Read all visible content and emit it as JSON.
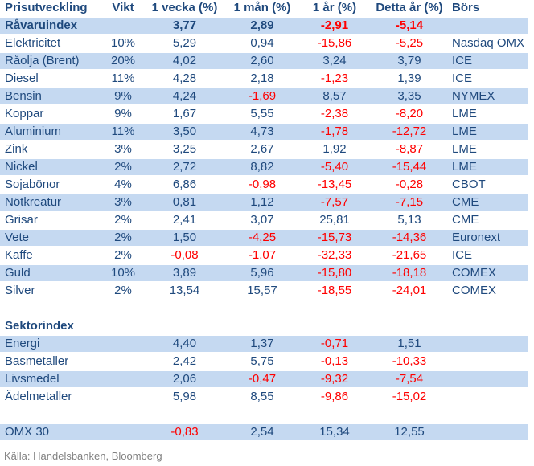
{
  "table": {
    "columns": [
      "Prisutveckling",
      "Vikt",
      "1 vecka (%)",
      "1 mån (%)",
      "1 år (%)",
      "Detta år (%)",
      "Börs"
    ],
    "rows": [
      {
        "cells": [
          "Råvaruindex",
          "",
          "3,77",
          "2,89",
          "-2,91",
          "-5,14",
          ""
        ],
        "bold": true,
        "shaded": true
      },
      {
        "cells": [
          "Elektricitet",
          "10%",
          "5,29",
          "0,94",
          "-15,86",
          "-5,25",
          "Nasdaq OMX"
        ],
        "shaded": false
      },
      {
        "cells": [
          "Råolja (Brent)",
          "20%",
          "4,02",
          "2,60",
          "3,24",
          "3,79",
          "ICE"
        ],
        "shaded": true
      },
      {
        "cells": [
          "Diesel",
          "11%",
          "4,28",
          "2,18",
          "-1,23",
          "1,39",
          "ICE"
        ],
        "shaded": false
      },
      {
        "cells": [
          "Bensin",
          "9%",
          "4,24",
          "-1,69",
          "8,57",
          "3,35",
          "NYMEX"
        ],
        "shaded": true
      },
      {
        "cells": [
          "Koppar",
          "9%",
          "1,67",
          "5,55",
          "-2,38",
          "-8,20",
          "LME"
        ],
        "shaded": false
      },
      {
        "cells": [
          "Aluminium",
          "11%",
          "3,50",
          "4,73",
          "-1,78",
          "-12,72",
          "LME"
        ],
        "shaded": true
      },
      {
        "cells": [
          "Zink",
          "3%",
          "3,25",
          "2,67",
          "1,92",
          "-8,87",
          "LME"
        ],
        "shaded": false
      },
      {
        "cells": [
          "Nickel",
          "2%",
          "2,72",
          "8,82",
          "-5,40",
          "-15,44",
          "LME"
        ],
        "shaded": true
      },
      {
        "cells": [
          "Sojabönor",
          "4%",
          "6,86",
          "-0,98",
          "-13,45",
          "-0,28",
          "CBOT"
        ],
        "shaded": false
      },
      {
        "cells": [
          "Nötkreatur",
          "3%",
          "0,81",
          "1,12",
          "-7,57",
          "-7,15",
          "CME"
        ],
        "shaded": true
      },
      {
        "cells": [
          "Grisar",
          "2%",
          "2,41",
          "3,07",
          "25,81",
          "5,13",
          "CME"
        ],
        "shaded": false
      },
      {
        "cells": [
          "Vete",
          "2%",
          "1,50",
          "-4,25",
          "-15,73",
          "-14,36",
          "Euronext"
        ],
        "shaded": true
      },
      {
        "cells": [
          "Kaffe",
          "2%",
          "-0,08",
          "-1,07",
          "-32,33",
          "-21,65",
          "ICE"
        ],
        "shaded": false
      },
      {
        "cells": [
          "Guld",
          "10%",
          "3,89",
          "5,96",
          "-15,80",
          "-18,18",
          "COMEX"
        ],
        "shaded": true
      },
      {
        "cells": [
          "Silver",
          "2%",
          "13,54",
          "15,57",
          "-18,55",
          "-24,01",
          "COMEX"
        ],
        "shaded": false
      },
      {
        "blank": true
      },
      {
        "cells": [
          "Sektorindex",
          "",
          "",
          "",
          "",
          "",
          ""
        ],
        "bold": true,
        "shaded": false
      },
      {
        "cells": [
          "Energi",
          "",
          "4,40",
          "1,37",
          "-0,71",
          "1,51",
          ""
        ],
        "shaded": true
      },
      {
        "cells": [
          "Basmetaller",
          "",
          "2,42",
          "5,75",
          "-0,13",
          "-10,33",
          ""
        ],
        "shaded": false
      },
      {
        "cells": [
          "Livsmedel",
          "",
          "2,06",
          "-0,47",
          "-9,32",
          "-7,54",
          ""
        ],
        "shaded": true
      },
      {
        "cells": [
          "Ädelmetaller",
          "",
          "5,98",
          "8,55",
          "-9,86",
          "-15,02",
          ""
        ],
        "shaded": false
      },
      {
        "blank": true
      },
      {
        "cells": [
          "OMX 30",
          "",
          "-0,83",
          "2,54",
          "15,34",
          "12,55",
          ""
        ],
        "shaded": true
      }
    ]
  },
  "footer": {
    "source": "Källa: Handelsbanken, Bloomberg"
  },
  "colors": {
    "row_shade_blue": "#C5D9F1",
    "text_navy": "#1F497D",
    "negative_red": "#FF0000",
    "footer_gray": "#808080",
    "background": "#FFFFFF"
  }
}
